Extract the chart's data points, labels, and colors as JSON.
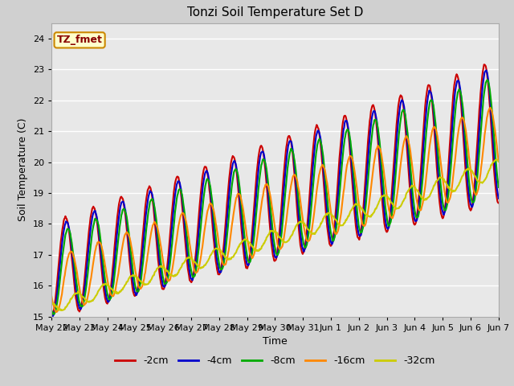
{
  "title": "Tonzi Soil Temperature Set D",
  "xlabel": "Time",
  "ylabel": "Soil Temperature (C)",
  "ylim": [
    15.0,
    24.5
  ],
  "yticks": [
    15.0,
    16.0,
    17.0,
    18.0,
    19.0,
    20.0,
    21.0,
    22.0,
    23.0,
    24.0
  ],
  "series_labels": [
    "-2cm",
    "-4cm",
    "-8cm",
    "-16cm",
    "-32cm"
  ],
  "series_colors": [
    "#cc0000",
    "#0000cc",
    "#00aa00",
    "#ff8800",
    "#cccc00"
  ],
  "line_widths": [
    1.5,
    1.5,
    1.5,
    1.5,
    1.5
  ],
  "plot_bg_color": "#e8e8e8",
  "fig_bg_color": "#d0d0d0",
  "legend_label": "TZ_fmet",
  "legend_bg": "#ffffcc",
  "legend_border": "#cc8800",
  "n_days": 16,
  "title_fontsize": 11,
  "axis_fontsize": 9,
  "tick_fontsize": 8,
  "legend_fontsize": 9
}
